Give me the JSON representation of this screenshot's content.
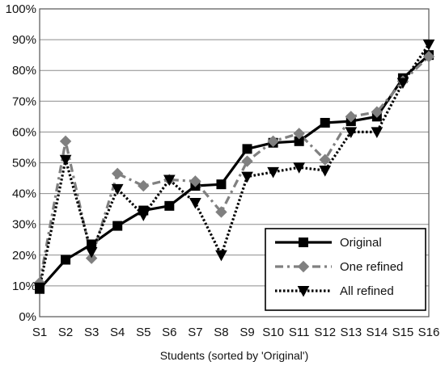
{
  "chart_data": {
    "type": "line",
    "title": "",
    "xlabel": "Students (sorted by 'Original')",
    "ylabel": "",
    "categories": [
      "S1",
      "S2",
      "S3",
      "S4",
      "S5",
      "S6",
      "S7",
      "S8",
      "S9",
      "S10",
      "S11",
      "S12",
      "S13",
      "S14",
      "S15",
      "S16"
    ],
    "ylim": [
      0,
      100
    ],
    "yticks": [
      0,
      10,
      20,
      30,
      40,
      50,
      60,
      70,
      80,
      90,
      100
    ],
    "ytick_labels": [
      "0%",
      "10%",
      "20%",
      "30%",
      "40%",
      "50%",
      "60%",
      "70%",
      "80%",
      "90%",
      "100%"
    ],
    "grid": "horizontal",
    "legend_position": "bottom-right",
    "series": [
      {
        "name": "Original",
        "values": [
          9,
          18.5,
          23.5,
          29.5,
          34.5,
          36,
          42.5,
          43,
          54.5,
          56.5,
          57,
          63,
          63.5,
          65,
          77.5,
          85
        ],
        "color": "#000000",
        "line_style": "solid",
        "marker": "square"
      },
      {
        "name": "One refined",
        "values": [
          11,
          57,
          19,
          46.5,
          42.5,
          44.5,
          44,
          34,
          50.5,
          57,
          59.5,
          51,
          65,
          66.5,
          76.5,
          84.5
        ],
        "color": "#808080",
        "line_style": "dash-dot",
        "marker": "diamond"
      },
      {
        "name": "All refined",
        "values": [
          9.5,
          51,
          21,
          41.5,
          33,
          44.5,
          37,
          20,
          45.5,
          47,
          48.5,
          47.5,
          60,
          60,
          76,
          88.5
        ],
        "color": "#000000",
        "line_style": "dotted",
        "marker": "triangle-down"
      }
    ]
  }
}
